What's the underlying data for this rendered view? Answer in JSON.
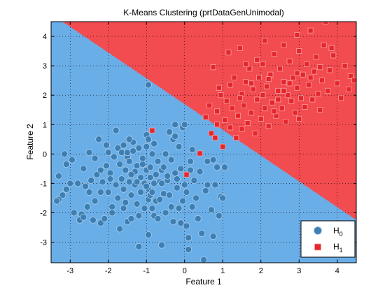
{
  "chart_data": {
    "type": "scatter",
    "title": "K-Means Clustering (prtDataGenUnimodal)",
    "xlabel": "Feature 1",
    "ylabel": "Feature 2",
    "xlim": [
      -3.5,
      4.5
    ],
    "ylim": [
      -3.7,
      4.5
    ],
    "x_ticks": [
      -3,
      -2,
      -1,
      0,
      1,
      2,
      3,
      4
    ],
    "y_ticks": [
      -3,
      -2,
      -1,
      0,
      1,
      2,
      3,
      4
    ],
    "grid": true,
    "grid_style": "dotted",
    "legend_position": "bottom-right",
    "decision_boundary": {
      "description": "linear boundary separating two decision regions",
      "points": [
        [
          -3.2,
          4.5
        ],
        [
          4.45,
          -2.2
        ]
      ],
      "region_H0": "lower-left",
      "region_H1": "upper-right",
      "region_colors": {
        "H0": "#6aaee8",
        "H1": "#f24b50"
      }
    },
    "series": [
      {
        "name": "H0",
        "legend_base": "H",
        "legend_sub": "0",
        "marker": "circle",
        "color": "#3c7fb4",
        "points": [
          [
            -3.3,
            -0.75
          ],
          [
            -3.2,
            -1.4
          ],
          [
            -3.1,
            -1.2
          ],
          [
            -3.3,
            -1.55
          ],
          [
            -3.15,
            0.0
          ],
          [
            -3.1,
            -0.35
          ],
          [
            -3.0,
            -1.0
          ],
          [
            -2.95,
            -0.2
          ],
          [
            -2.9,
            -2.0
          ],
          [
            -2.8,
            -1.0
          ],
          [
            -2.75,
            -2.25
          ],
          [
            -2.7,
            -2.05
          ],
          [
            -2.65,
            -2.15
          ],
          [
            -2.6,
            -1.1
          ],
          [
            -2.55,
            -1.8
          ],
          [
            -2.5,
            0.05
          ],
          [
            -2.5,
            -1.3
          ],
          [
            -2.45,
            -0.9
          ],
          [
            -2.4,
            -2.25
          ],
          [
            -2.35,
            -0.15
          ],
          [
            -2.3,
            -0.7
          ],
          [
            -2.25,
            0.5
          ],
          [
            -2.2,
            -2.35
          ],
          [
            -2.2,
            -0.55
          ],
          [
            -2.15,
            -0.95
          ],
          [
            -2.1,
            -2.2
          ],
          [
            -2.05,
            0.3
          ],
          [
            -2.05,
            -0.4
          ],
          [
            -2.0,
            -1.3
          ],
          [
            -2.0,
            0.05
          ],
          [
            -1.95,
            -0.65
          ],
          [
            -1.9,
            -1.8
          ],
          [
            -1.9,
            -2.0
          ],
          [
            -1.85,
            -0.1
          ],
          [
            -1.8,
            0.8
          ],
          [
            -1.8,
            -1.05
          ],
          [
            -1.75,
            0.2
          ],
          [
            -1.75,
            -1.5
          ],
          [
            -1.7,
            -0.35
          ],
          [
            -1.7,
            -2.55
          ],
          [
            -1.65,
            0.05
          ],
          [
            -1.65,
            -0.85
          ],
          [
            -1.6,
            -1.2
          ],
          [
            -1.6,
            0.3
          ],
          [
            -1.55,
            -0.55
          ],
          [
            -1.55,
            -1.65
          ],
          [
            -1.5,
            -2.3
          ],
          [
            -1.5,
            -0.1
          ],
          [
            -1.5,
            0.05
          ],
          [
            -1.45,
            -0.95
          ],
          [
            -1.45,
            -0.25
          ],
          [
            -1.4,
            -1.4
          ],
          [
            -1.4,
            -2.2
          ],
          [
            -1.35,
            0.1
          ],
          [
            -1.35,
            0.4
          ],
          [
            -1.3,
            -0.6
          ],
          [
            -1.3,
            -1.05
          ],
          [
            -1.25,
            -0.4
          ],
          [
            -1.25,
            -1.7
          ],
          [
            -1.2,
            0.2
          ],
          [
            -1.2,
            -2.1
          ],
          [
            -1.2,
            -3.15
          ],
          [
            -1.15,
            -0.8
          ],
          [
            -1.15,
            -1.3
          ],
          [
            -1.1,
            -0.15
          ],
          [
            -1.1,
            -0.35
          ],
          [
            -1.05,
            -1.0
          ],
          [
            -1.05,
            -1.85
          ],
          [
            -1.0,
            0.25
          ],
          [
            -1.0,
            0.65
          ],
          [
            -1.0,
            -0.55
          ],
          [
            -0.95,
            -1.2
          ],
          [
            -0.95,
            -1.55
          ],
          [
            -0.95,
            -2.75
          ],
          [
            -0.9,
            -0.8
          ],
          [
            -0.9,
            -1.4
          ],
          [
            -0.9,
            -0.45
          ],
          [
            -0.85,
            -1.3
          ],
          [
            -0.85,
            -1.85
          ],
          [
            -0.85,
            0.0
          ],
          [
            -0.8,
            -2.1
          ],
          [
            -0.8,
            -1.0
          ],
          [
            -0.8,
            0.35
          ],
          [
            -0.75,
            -0.7
          ],
          [
            -0.75,
            -1.6
          ],
          [
            -0.7,
            -0.25
          ],
          [
            -0.7,
            -2.2
          ],
          [
            -0.65,
            -0.95
          ],
          [
            -0.65,
            -1.55
          ],
          [
            -0.6,
            -0.55
          ],
          [
            -0.6,
            -3.1
          ],
          [
            -0.55,
            -1.35
          ],
          [
            -0.5,
            0.0
          ],
          [
            -0.5,
            -2.0
          ],
          [
            -0.45,
            -0.9
          ],
          [
            -0.45,
            -0.75
          ],
          [
            -0.4,
            0.75
          ],
          [
            -0.4,
            -1.4
          ],
          [
            -0.35,
            -1.8
          ],
          [
            -0.35,
            -0.2
          ],
          [
            -0.3,
            0.5
          ],
          [
            -0.3,
            -2.3
          ],
          [
            -0.25,
            -0.65
          ],
          [
            -0.25,
            1.0
          ],
          [
            -0.2,
            -1.15
          ],
          [
            -0.2,
            -0.85
          ],
          [
            -0.15,
            -1.85
          ],
          [
            -0.15,
            0.25
          ],
          [
            -0.1,
            -0.5
          ],
          [
            -0.1,
            -2.35
          ],
          [
            -0.05,
            -1.6
          ],
          [
            -0.05,
            0.9
          ],
          [
            0.0,
            -1.05
          ],
          [
            0.05,
            -2.45
          ],
          [
            0.05,
            -1.3
          ],
          [
            0.1,
            -2.85
          ],
          [
            0.1,
            -3.25
          ],
          [
            0.15,
            -0.25
          ],
          [
            0.2,
            -1.8
          ],
          [
            0.2,
            0.15
          ],
          [
            0.25,
            -0.9
          ],
          [
            0.3,
            -1.5
          ],
          [
            0.35,
            -2.2
          ],
          [
            0.4,
            -0.6
          ],
          [
            0.45,
            -2.7
          ],
          [
            0.5,
            -3.6
          ],
          [
            0.55,
            -1.25
          ],
          [
            0.6,
            -0.25
          ],
          [
            0.7,
            -1.9
          ],
          [
            0.75,
            -2.8
          ],
          [
            0.8,
            -1.05
          ],
          [
            0.85,
            -0.45
          ],
          [
            0.9,
            -2.1
          ],
          [
            0.95,
            -1.45
          ],
          [
            1.0,
            -1.5
          ],
          [
            1.05,
            -0.45
          ],
          [
            -2.65,
            -0.5
          ],
          [
            -2.35,
            -1.6
          ],
          [
            -1.95,
            -0.85
          ],
          [
            -1.6,
            -1.85
          ],
          [
            -1.25,
            -0.95
          ],
          [
            -0.55,
            -0.45
          ],
          [
            0.15,
            -0.55
          ],
          [
            -3.35,
            -1.6
          ],
          [
            -1.45,
            0.5
          ],
          [
            -0.95,
            0.5
          ],
          [
            -0.25,
            0.6
          ],
          [
            0.0,
            1.0
          ],
          [
            -1.4,
            -0.7
          ],
          [
            -0.6,
            -1.0
          ],
          [
            -1.0,
            -1.1
          ],
          [
            -2.2,
            -1.3
          ],
          [
            -0.95,
            2.35
          ],
          [
            0.6,
            -1.05
          ],
          [
            0.75,
            -0.2
          ]
        ]
      },
      {
        "name": "H1",
        "legend_base": "H",
        "legend_sub": "1",
        "marker": "square",
        "color": "#e5262c",
        "points": [
          [
            -0.85,
            0.8
          ],
          [
            0.05,
            -0.7
          ],
          [
            0.4,
            0.02
          ],
          [
            0.65,
            1.65
          ],
          [
            0.7,
            0.7
          ],
          [
            0.75,
            2.95
          ],
          [
            0.8,
            0.55
          ],
          [
            0.85,
            1.0
          ],
          [
            0.85,
            1.45
          ],
          [
            0.9,
            2.25
          ],
          [
            0.95,
            2.0
          ],
          [
            1.0,
            0.25
          ],
          [
            1.05,
            1.15
          ],
          [
            1.1,
            1.8
          ],
          [
            1.15,
            3.45
          ],
          [
            1.2,
            0.9
          ],
          [
            1.25,
            1.55
          ],
          [
            1.3,
            2.6
          ],
          [
            1.35,
            0.55
          ],
          [
            1.4,
            1.3
          ],
          [
            1.45,
            3.6
          ],
          [
            1.5,
            2.05
          ],
          [
            1.5,
            0.85
          ],
          [
            1.55,
            1.65
          ],
          [
            1.6,
            2.45
          ],
          [
            1.65,
            1.05
          ],
          [
            1.7,
            2.9
          ],
          [
            1.75,
            1.4
          ],
          [
            1.8,
            2.2
          ],
          [
            1.85,
            0.7
          ],
          [
            1.9,
            1.85
          ],
          [
            1.9,
            3.2
          ],
          [
            1.95,
            2.6
          ],
          [
            2.0,
            1.2
          ],
          [
            2.05,
            2.0
          ],
          [
            2.1,
            1.55
          ],
          [
            2.1,
            3.85
          ],
          [
            2.15,
            2.3
          ],
          [
            2.2,
            0.95
          ],
          [
            2.25,
            2.7
          ],
          [
            2.3,
            1.75
          ],
          [
            2.35,
            3.4
          ],
          [
            2.4,
            1.3
          ],
          [
            2.45,
            2.15
          ],
          [
            2.5,
            2.9
          ],
          [
            2.55,
            1.55
          ],
          [
            2.6,
            2.45
          ],
          [
            2.6,
            3.7
          ],
          [
            2.65,
            1.1
          ],
          [
            2.7,
            2.0
          ],
          [
            2.75,
            3.15
          ],
          [
            2.8,
            1.8
          ],
          [
            2.85,
            2.6
          ],
          [
            2.9,
            1.4
          ],
          [
            2.95,
            2.25
          ],
          [
            3.0,
            3.5
          ],
          [
            3.05,
            1.9
          ],
          [
            3.1,
            2.7
          ],
          [
            3.15,
            1.6
          ],
          [
            3.2,
            3.05
          ],
          [
            3.25,
            2.35
          ],
          [
            3.3,
            4.2
          ],
          [
            3.35,
            1.85
          ],
          [
            3.4,
            2.8
          ],
          [
            3.45,
            3.3
          ],
          [
            3.5,
            2.05
          ],
          [
            3.55,
            1.5
          ],
          [
            3.6,
            2.5
          ],
          [
            3.65,
            3.7
          ],
          [
            3.7,
            4.5
          ],
          [
            3.75,
            2.15
          ],
          [
            3.8,
            2.85
          ],
          [
            3.9,
            3.35
          ],
          [
            4.0,
            2.4
          ],
          [
            4.1,
            1.9
          ],
          [
            4.2,
            3.0
          ],
          [
            4.35,
            2.65
          ],
          [
            4.45,
            2.5
          ],
          [
            1.6,
            3.05
          ],
          [
            2.2,
            2.55
          ],
          [
            2.75,
            2.4
          ],
          [
            3.0,
            1.2
          ],
          [
            3.3,
            2.6
          ],
          [
            1.75,
            2.4
          ],
          [
            2.45,
            1.85
          ],
          [
            0.55,
            1.25
          ],
          [
            3.85,
            3.6
          ],
          [
            4.3,
            2.2
          ],
          [
            2.95,
            4.05
          ],
          [
            1.2,
            2.35
          ],
          [
            2.05,
            3.05
          ],
          [
            2.6,
            2.15
          ],
          [
            3.55,
            2.95
          ],
          [
            1.45,
            1.9
          ],
          [
            2.35,
            1.45
          ],
          [
            2.95,
            2.75
          ]
        ]
      }
    ]
  }
}
